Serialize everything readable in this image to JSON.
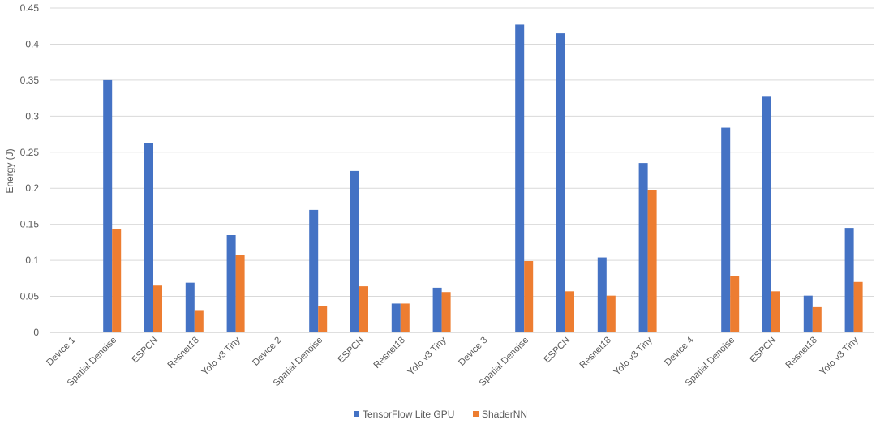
{
  "chart_data": {
    "type": "bar",
    "title": "",
    "xlabel": "",
    "ylabel": "Energy (J)",
    "ylim": [
      0,
      0.45
    ],
    "yticks": [
      "0",
      "0.05",
      "0.1",
      "0.15",
      "0.2",
      "0.25",
      "0.3",
      "0.35",
      "0.4",
      "0.45"
    ],
    "grid": true,
    "legend_position": "bottom",
    "categories": [
      "Device 1",
      "Spatial Denoise",
      "ESPCN",
      "Resnet18",
      "Yolo v3 Tiny",
      "Device 2",
      "Spatial Denoise",
      "ESPCN",
      "Resnet18",
      "Yolo v3 Tiny",
      "Device 3",
      "Spatial Denoise",
      "ESPCN",
      "Resnet18",
      "Yolo v3 Tiny",
      "Device 4",
      "Spatial Denoise",
      "ESPCN",
      "Resnet18",
      "Yolo v3 Tiny"
    ],
    "series": [
      {
        "name": "TensorFlow Lite GPU",
        "color": "#4472c4",
        "values": [
          null,
          0.35,
          0.263,
          0.069,
          0.135,
          null,
          0.17,
          0.224,
          0.04,
          0.062,
          null,
          0.427,
          0.415,
          0.104,
          0.235,
          null,
          0.284,
          0.327,
          0.051,
          0.145
        ]
      },
      {
        "name": "ShaderNN",
        "color": "#ed7d31",
        "values": [
          null,
          0.143,
          0.065,
          0.031,
          0.107,
          null,
          0.037,
          0.064,
          0.04,
          0.056,
          null,
          0.099,
          0.057,
          0.051,
          0.198,
          null,
          0.078,
          0.057,
          0.035,
          0.07
        ]
      }
    ]
  }
}
